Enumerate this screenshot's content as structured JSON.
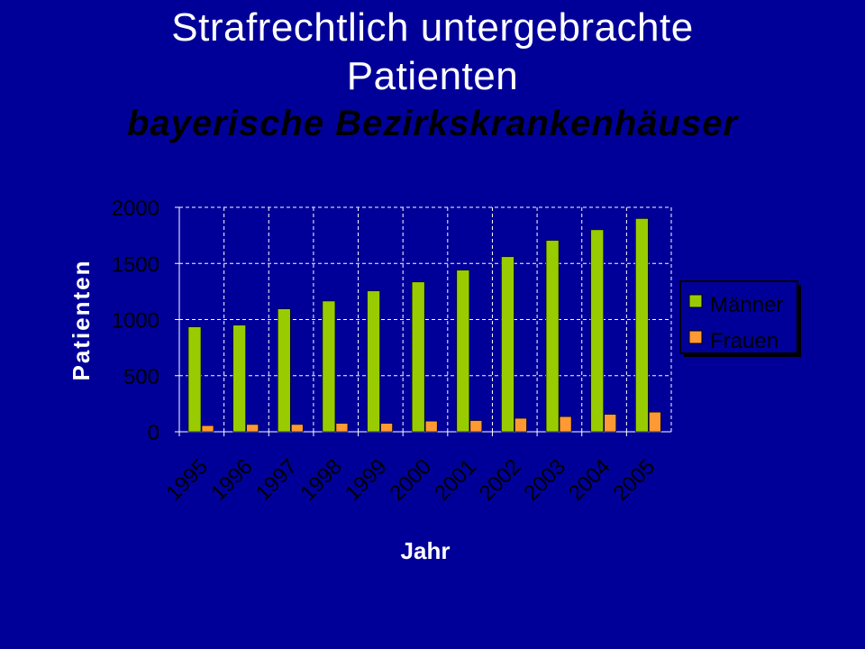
{
  "slide": {
    "title_line1": "Strafrechtlich untergebrachte",
    "title_line2": "Patienten",
    "subtitle": "bayerische Bezirkskrankenhäuser"
  },
  "colors": {
    "background": "#000099",
    "maenner": "#99cc00",
    "frauen": "#ff9933",
    "grid": "#ffffff",
    "text_dark": "#000000",
    "legend_bg": "#000099"
  },
  "chart_data": {
    "type": "bar",
    "title": "",
    "xlabel": "Jahr",
    "ylabel": "Patienten",
    "ylim": [
      0,
      2000
    ],
    "yticks": [
      0,
      500,
      1000,
      1500,
      2000
    ],
    "grid": true,
    "legend_position": "right",
    "categories": [
      "1995",
      "1996",
      "1997",
      "1998",
      "1999",
      "2000",
      "2001",
      "2002",
      "2003",
      "2004",
      "2005"
    ],
    "series": [
      {
        "name": "Männer",
        "color": "#99cc00",
        "values": [
          935,
          950,
          1095,
          1165,
          1255,
          1335,
          1440,
          1560,
          1705,
          1800,
          1900
        ]
      },
      {
        "name": "Frauen",
        "color": "#ff9933",
        "values": [
          55,
          65,
          65,
          75,
          75,
          95,
          100,
          120,
          135,
          155,
          175
        ]
      }
    ]
  }
}
